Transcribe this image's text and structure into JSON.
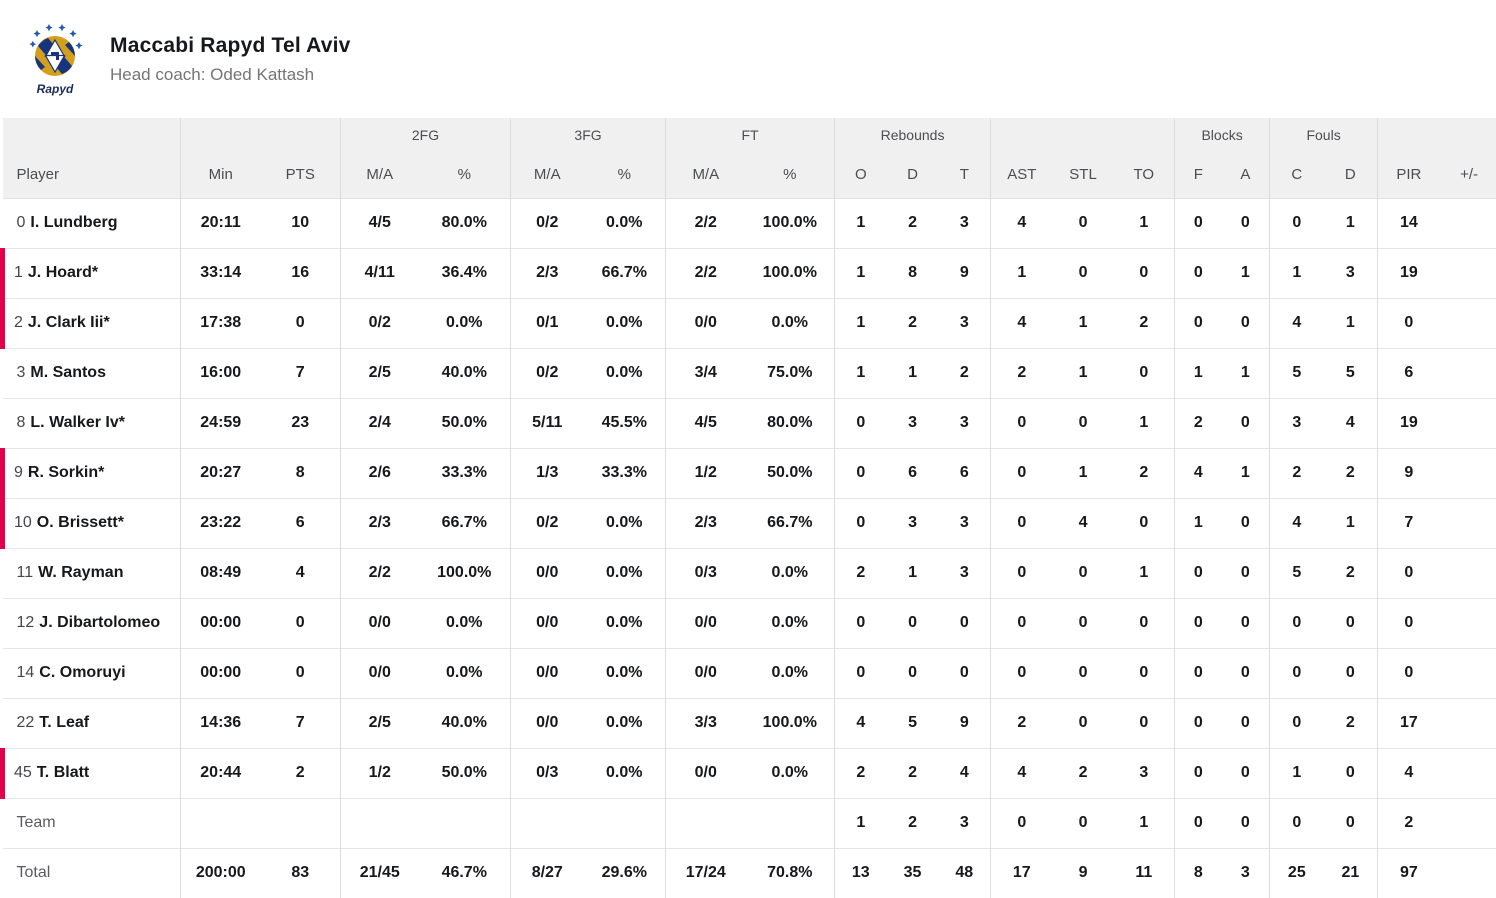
{
  "header": {
    "team_name": "Maccabi Rapyd Tel Aviv",
    "head_coach": "Head coach: Oded Kattash",
    "logo_text": "Rapyd"
  },
  "colors": {
    "accent_red": "#e0004d",
    "header_bg": "#f0f0f0",
    "logo_gold": "#d4a01c",
    "logo_blue": "#16357d"
  },
  "table": {
    "group_headers": [
      {
        "label": "",
        "colspan": 1
      },
      {
        "label": "",
        "colspan": 2
      },
      {
        "label": "2FG",
        "colspan": 2
      },
      {
        "label": "3FG",
        "colspan": 2
      },
      {
        "label": "FT",
        "colspan": 2
      },
      {
        "label": "Rebounds",
        "colspan": 3
      },
      {
        "label": "",
        "colspan": 3
      },
      {
        "label": "Blocks",
        "colspan": 2
      },
      {
        "label": "Fouls",
        "colspan": 2
      },
      {
        "label": "",
        "colspan": 2
      }
    ],
    "columns": [
      "Player",
      "Min",
      "PTS",
      "M/A",
      "%",
      "M/A",
      "%",
      "M/A",
      "%",
      "O",
      "D",
      "T",
      "AST",
      "STL",
      "TO",
      "F",
      "A",
      "C",
      "D",
      "PIR",
      "+/-"
    ],
    "rows": [
      {
        "number": "0",
        "name": "I. Lundberg",
        "active": false,
        "stats": [
          "20:11",
          "10",
          "4/5",
          "80.0%",
          "0/2",
          "0.0%",
          "2/2",
          "100.0%",
          "1",
          "2",
          "3",
          "4",
          "0",
          "1",
          "0",
          "0",
          "0",
          "1",
          "14",
          ""
        ]
      },
      {
        "number": "1",
        "name": "J. Hoard*",
        "active": true,
        "stats": [
          "33:14",
          "16",
          "4/11",
          "36.4%",
          "2/3",
          "66.7%",
          "2/2",
          "100.0%",
          "1",
          "8",
          "9",
          "1",
          "0",
          "0",
          "0",
          "1",
          "1",
          "3",
          "19",
          ""
        ]
      },
      {
        "number": "2",
        "name": "J. Clark Iii*",
        "active": true,
        "stats": [
          "17:38",
          "0",
          "0/2",
          "0.0%",
          "0/1",
          "0.0%",
          "0/0",
          "0.0%",
          "1",
          "2",
          "3",
          "4",
          "1",
          "2",
          "0",
          "0",
          "4",
          "1",
          "0",
          ""
        ]
      },
      {
        "number": "3",
        "name": "M. Santos",
        "active": false,
        "stats": [
          "16:00",
          "7",
          "2/5",
          "40.0%",
          "0/2",
          "0.0%",
          "3/4",
          "75.0%",
          "1",
          "1",
          "2",
          "2",
          "1",
          "0",
          "1",
          "1",
          "5",
          "5",
          "6",
          ""
        ]
      },
      {
        "number": "8",
        "name": "L. Walker Iv*",
        "active": false,
        "stats": [
          "24:59",
          "23",
          "2/4",
          "50.0%",
          "5/11",
          "45.5%",
          "4/5",
          "80.0%",
          "0",
          "3",
          "3",
          "0",
          "0",
          "1",
          "2",
          "0",
          "3",
          "4",
          "19",
          ""
        ]
      },
      {
        "number": "9",
        "name": "R. Sorkin*",
        "active": true,
        "stats": [
          "20:27",
          "8",
          "2/6",
          "33.3%",
          "1/3",
          "33.3%",
          "1/2",
          "50.0%",
          "0",
          "6",
          "6",
          "0",
          "1",
          "2",
          "4",
          "1",
          "2",
          "2",
          "9",
          ""
        ]
      },
      {
        "number": "10",
        "name": "O. Brissett*",
        "active": true,
        "stats": [
          "23:22",
          "6",
          "2/3",
          "66.7%",
          "0/2",
          "0.0%",
          "2/3",
          "66.7%",
          "0",
          "3",
          "3",
          "0",
          "4",
          "0",
          "1",
          "0",
          "4",
          "1",
          "7",
          ""
        ]
      },
      {
        "number": "11",
        "name": "W. Rayman",
        "active": false,
        "stats": [
          "08:49",
          "4",
          "2/2",
          "100.0%",
          "0/0",
          "0.0%",
          "0/3",
          "0.0%",
          "2",
          "1",
          "3",
          "0",
          "0",
          "1",
          "0",
          "0",
          "5",
          "2",
          "0",
          ""
        ]
      },
      {
        "number": "12",
        "name": "J. Dibartolomeo",
        "active": false,
        "stats": [
          "00:00",
          "0",
          "0/0",
          "0.0%",
          "0/0",
          "0.0%",
          "0/0",
          "0.0%",
          "0",
          "0",
          "0",
          "0",
          "0",
          "0",
          "0",
          "0",
          "0",
          "0",
          "0",
          ""
        ]
      },
      {
        "number": "14",
        "name": "C. Omoruyi",
        "active": false,
        "stats": [
          "00:00",
          "0",
          "0/0",
          "0.0%",
          "0/0",
          "0.0%",
          "0/0",
          "0.0%",
          "0",
          "0",
          "0",
          "0",
          "0",
          "0",
          "0",
          "0",
          "0",
          "0",
          "0",
          ""
        ]
      },
      {
        "number": "22",
        "name": "T. Leaf",
        "active": false,
        "stats": [
          "14:36",
          "7",
          "2/5",
          "40.0%",
          "0/0",
          "0.0%",
          "3/3",
          "100.0%",
          "4",
          "5",
          "9",
          "2",
          "0",
          "0",
          "0",
          "0",
          "0",
          "2",
          "17",
          ""
        ]
      },
      {
        "number": "45",
        "name": "T. Blatt",
        "active": true,
        "stats": [
          "20:44",
          "2",
          "1/2",
          "50.0%",
          "0/3",
          "0.0%",
          "0/0",
          "0.0%",
          "2",
          "2",
          "4",
          "4",
          "2",
          "3",
          "0",
          "0",
          "1",
          "0",
          "4",
          ""
        ]
      }
    ],
    "team_row": {
      "label": "Team",
      "stats": [
        "",
        "",
        "",
        "",
        "",
        "",
        "",
        "",
        "1",
        "2",
        "3",
        "0",
        "0",
        "1",
        "0",
        "0",
        "0",
        "0",
        "2",
        ""
      ]
    },
    "total_row": {
      "label": "Total",
      "stats": [
        "200:00",
        "83",
        "21/45",
        "46.7%",
        "8/27",
        "29.6%",
        "17/24",
        "70.8%",
        "13",
        "35",
        "48",
        "17",
        "9",
        "11",
        "8",
        "3",
        "25",
        "21",
        "97",
        ""
      ]
    }
  }
}
